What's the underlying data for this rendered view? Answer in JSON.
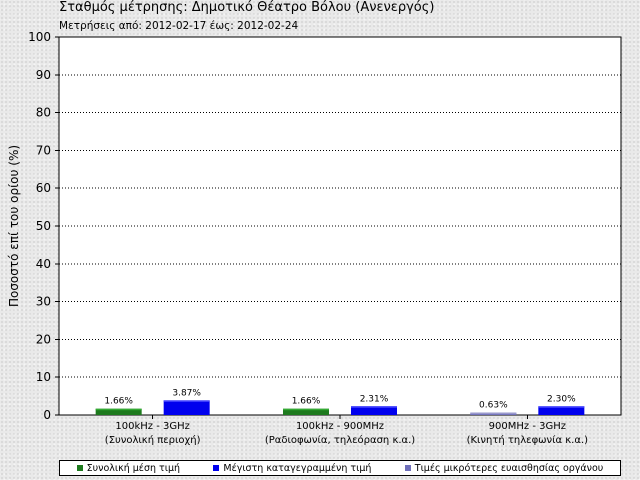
{
  "header": {
    "title": "Σταθμός μέτρησης: Δημοτικό Θέατρο Βόλου (Ανενεργός)",
    "subtitle": "Μετρήσεις από: 2012-02-17 έως: 2012-02-24"
  },
  "colors": {
    "average": "#1e7a1e",
    "maximum": "#0000ee",
    "below_sensitivity": "#7070bb",
    "average_top": "#33aa33",
    "maximum_top": "#4444ff",
    "below_sensitivity_top": "#9999cc"
  },
  "chart_data": {
    "type": "bar",
    "ylabel": "Ποσοστό επί του ορίου (%)",
    "ylim": [
      0,
      100
    ],
    "yticks": [
      "0",
      "10",
      "20",
      "30",
      "40",
      "50",
      "60",
      "70",
      "80",
      "90",
      "100"
    ],
    "grid": true,
    "legend_position": "bottom",
    "categories": [
      {
        "line1": "100kHz - 3GHz",
        "line2": "(Συνολική περιοχή)"
      },
      {
        "line1": "100kHz - 900MHz",
        "line2": "(Ραδιοφωνία, τηλεόραση κ.α.)"
      },
      {
        "line1": "900MHz - 3GHz",
        "line2": "(Κινητή τηλεφωνία κ.α.)"
      }
    ],
    "series": [
      {
        "key": "average",
        "name": "Συνολική μέση τιμή",
        "values": [
          1.66,
          1.66,
          null
        ]
      },
      {
        "key": "maximum",
        "name": "Μέγιστη καταγεγραμμένη τιμή",
        "values": [
          3.87,
          2.31,
          2.3
        ]
      },
      {
        "key": "below_sensitivity",
        "name": "Τιμές μικρότερες ευαισθησίας οργάνου",
        "values": [
          null,
          null,
          0.63
        ]
      }
    ],
    "bars": [
      {
        "series": "average",
        "category": 0,
        "value": 1.66,
        "label": "1.66%"
      },
      {
        "series": "maximum",
        "category": 0,
        "value": 3.87,
        "label": "3.87%"
      },
      {
        "series": "average",
        "category": 1,
        "value": 1.66,
        "label": "1.66%"
      },
      {
        "series": "maximum",
        "category": 1,
        "value": 2.31,
        "label": "2.31%"
      },
      {
        "series": "below_sensitivity",
        "category": 2,
        "value": 0.63,
        "label": "0.63%"
      },
      {
        "series": "maximum",
        "category": 2,
        "value": 2.3,
        "label": "2.30%"
      }
    ]
  },
  "legend": {
    "items": [
      {
        "key": "average",
        "label": "Συνολική μέση τιμή"
      },
      {
        "key": "maximum",
        "label": "Μέγιστη καταγεγραμμένη τιμή"
      },
      {
        "key": "below_sensitivity",
        "label": "Τιμές μικρότερες ευαισθησίας οργάνου"
      }
    ]
  }
}
